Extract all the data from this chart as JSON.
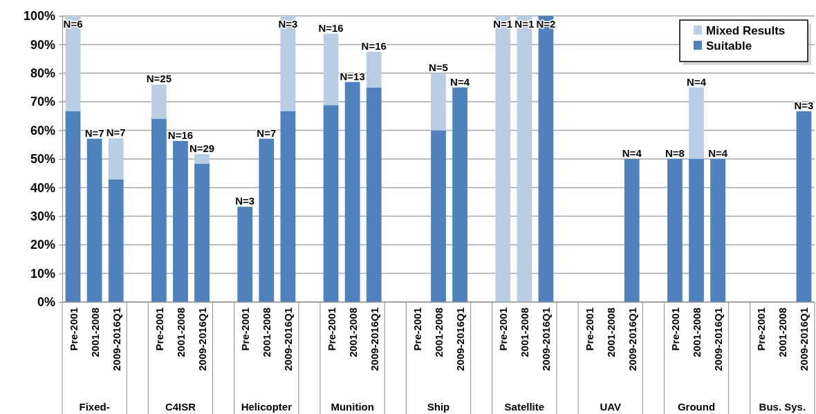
{
  "chart_data": {
    "type": "bar",
    "stacked": true,
    "categories": [
      "Pre-2001",
      "2001-2008",
      "2009-2016Q1",
      null,
      "Pre-2001",
      "2001-2008",
      "2009-2016Q1",
      null,
      "Pre-2001",
      "2001-2008",
      "2009-2016Q1",
      null,
      "Pre-2001",
      "2001-2008",
      "2009-2016Q1",
      null,
      "Pre-2001",
      "2001-2008",
      "2009-2016Q1",
      null,
      "Pre-2001",
      "2001-2008",
      "2009-2016Q1",
      null,
      "Pre-2001",
      "2001-2008",
      "2009-2016Q1",
      null,
      "Pre-2001",
      "2001-2008",
      "2009-2016Q1",
      null,
      "Pre-2001",
      "2001-2008",
      "2009-2016Q1"
    ],
    "series": [
      {
        "name": "Suitable",
        "color": "#4f81bd",
        "values": [
          66.7,
          57.1,
          42.9,
          null,
          64,
          56.3,
          48.3,
          null,
          33.3,
          57.1,
          66.7,
          null,
          68.8,
          76.9,
          75,
          null,
          null,
          60,
          75,
          null,
          null,
          null,
          100,
          null,
          null,
          null,
          50,
          null,
          50,
          50,
          50,
          null,
          null,
          null,
          66.7
        ]
      },
      {
        "name": "Mixed Results",
        "color": "#b9cde5",
        "values": [
          33.3,
          null,
          14.3,
          null,
          12,
          null,
          3.4,
          null,
          null,
          null,
          33.3,
          null,
          25,
          null,
          12.5,
          null,
          null,
          20,
          null,
          null,
          100,
          100,
          null,
          null,
          null,
          null,
          null,
          null,
          null,
          25,
          null,
          null,
          null,
          null,
          null
        ]
      }
    ],
    "annotations": [
      "Fixed-",
      "C4ISR",
      "Helicopter",
      "Munition",
      "Ship",
      "Satellite",
      "UAV",
      "Ground",
      "Bus. Sys.",
      "N=6",
      "N=7",
      "N=7",
      "N=25",
      "N=16",
      "N=29",
      "N=3",
      "N=7",
      "N=3",
      "N=16",
      "N=13",
      "N=16",
      "N=5",
      "N=4",
      "N=1",
      "N=1",
      "N=2",
      "N=4",
      "N=8",
      "N=4",
      "N=4",
      "N=3"
    ],
    "ylim": [
      0,
      100
    ],
    "yticks": [
      {
        "value": 0,
        "label": "0%"
      },
      {
        "value": 10,
        "label": "10%"
      },
      {
        "value": 20,
        "label": "20%"
      },
      {
        "value": 30,
        "label": "30%"
      },
      {
        "value": 40,
        "label": "40%"
      },
      {
        "value": 50,
        "label": "50%"
      },
      {
        "value": 60,
        "label": "60%"
      },
      {
        "value": 70,
        "label": "70%"
      },
      {
        "value": 80,
        "label": "80%"
      },
      {
        "value": 90,
        "label": "90%"
      },
      {
        "value": 100,
        "label": "100%"
      }
    ],
    "grid": "y",
    "legend": "top right"
  }
}
